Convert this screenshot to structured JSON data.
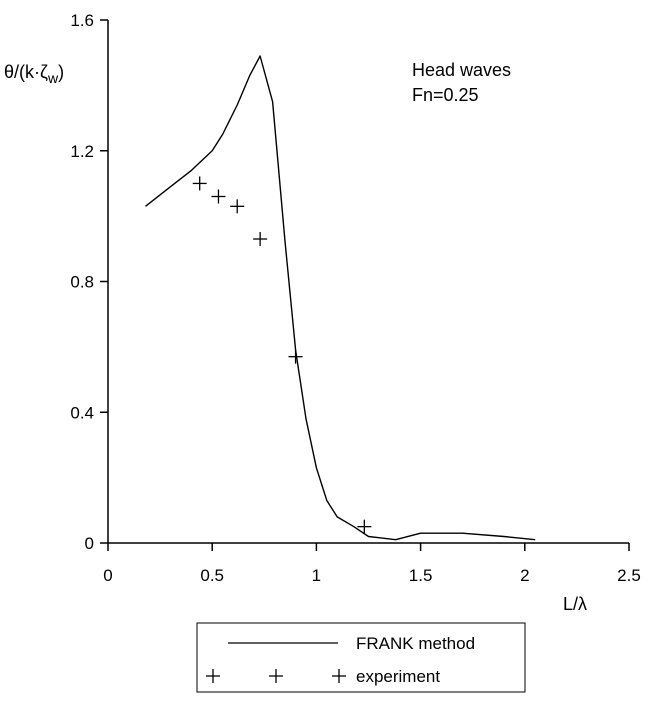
{
  "chart_data": {
    "type": "line",
    "title": "",
    "ylabel": "θ/(k·ζ",
    "ylabel_subscript": "w",
    "ylabel_suffix": ")",
    "xlabel": "L/λ",
    "xlim": [
      0,
      2.5
    ],
    "ylim": [
      0,
      1.6
    ],
    "xticks": [
      0,
      0.5,
      1,
      1.5,
      2,
      2.5
    ],
    "xtick_labels": [
      "0",
      "0.5",
      "1",
      "1.5",
      "2",
      "2.5"
    ],
    "yticks": [
      0,
      0.4,
      0.8,
      1.2,
      1.6
    ],
    "ytick_labels": [
      "0",
      "0.4",
      "0.8",
      "1.2",
      "1.6"
    ],
    "grid": false,
    "legend_position": "bottom",
    "annotations": [
      "Head waves",
      "Fn=0.25"
    ],
    "series": [
      {
        "name": "FRANK method",
        "style": "line",
        "x": [
          0.18,
          0.3,
          0.4,
          0.5,
          0.55,
          0.62,
          0.68,
          0.73,
          0.79,
          0.85,
          0.9,
          0.95,
          1.0,
          1.05,
          1.1,
          1.18,
          1.25,
          1.38,
          1.5,
          1.7,
          1.9,
          2.05
        ],
        "y": [
          1.03,
          1.09,
          1.14,
          1.2,
          1.25,
          1.34,
          1.43,
          1.49,
          1.35,
          0.92,
          0.59,
          0.38,
          0.23,
          0.13,
          0.08,
          0.05,
          0.02,
          0.01,
          0.03,
          0.03,
          0.02,
          0.01
        ]
      },
      {
        "name": "experiment",
        "style": "markers",
        "marker": "+",
        "x": [
          0.44,
          0.53,
          0.62,
          0.73,
          0.9,
          1.23
        ],
        "y": [
          1.1,
          1.06,
          1.03,
          0.93,
          0.57,
          0.05
        ]
      }
    ]
  }
}
